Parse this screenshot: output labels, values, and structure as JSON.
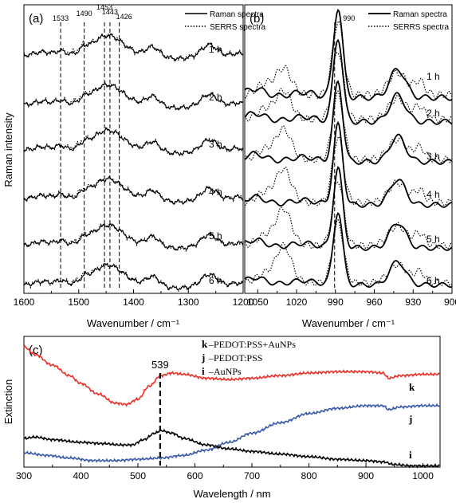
{
  "chart_data": [
    {
      "panel": "(a)",
      "type": "line",
      "xlabel": "Wavenumber / cm⁻¹",
      "ylabel": "Raman intensity",
      "xlim": [
        1600,
        1200
      ],
      "xticks": [
        "1600",
        "1500",
        "1400",
        "1300",
        "1200"
      ],
      "legend": [
        {
          "name": "Raman spectra",
          "style": "solid"
        },
        {
          "name": "SERRS spectra",
          "style": "dotted"
        }
      ],
      "legend_position": "top-right",
      "marker_lines": [
        "1533",
        "1490",
        "1453",
        "1443",
        "1426"
      ],
      "marker_values": [
        1533,
        1490,
        1453,
        1443,
        1426
      ],
      "series_labels": [
        "1 h",
        "2 h",
        "3 h",
        "4 h",
        "5 h",
        "6 h"
      ]
    },
    {
      "panel": "(b)",
      "type": "line",
      "xlabel": "Wavenumber / cm⁻¹",
      "xlim": [
        1060,
        900
      ],
      "xticks": [
        "1050",
        "1020",
        "990",
        "960",
        "930",
        "900"
      ],
      "legend": [
        {
          "name": "Raman spectra",
          "style": "solid"
        },
        {
          "name": "SERRS spectra",
          "style": "dotted"
        }
      ],
      "legend_position": "top-right",
      "marker_lines": [
        "990"
      ],
      "marker_values": [
        990
      ],
      "series_labels": [
        "1 h",
        "2 h",
        "3 h",
        "4 h",
        "5 h",
        "6 h"
      ]
    },
    {
      "panel": "(c)",
      "type": "line",
      "xlabel": "Wavelength / nm",
      "ylabel": "Extinction",
      "xlim": [
        300,
        1030
      ],
      "xticks": [
        "300",
        "400",
        "500",
        "600",
        "700",
        "800",
        "900",
        "1000"
      ],
      "annotation": "539",
      "annotation_x": 539,
      "legend": [
        {
          "key": "k",
          "text": "–PEDOT:PSS+AuNPs"
        },
        {
          "key": "j",
          "text": "–PEDOT:PSS"
        },
        {
          "key": "i",
          "text": "–AuNPs"
        }
      ],
      "curve_labels": [
        "k",
        "j",
        "i"
      ],
      "series": [
        {
          "key": "k",
          "color": "#e8322a",
          "x": [
            300,
            320,
            350,
            380,
            400,
            430,
            460,
            480,
            500,
            520,
            540,
            560,
            580,
            620,
            660,
            700,
            750,
            800,
            850,
            900,
            930,
            940,
            960,
            1000,
            1030
          ],
          "y": [
            0.92,
            0.86,
            0.78,
            0.7,
            0.64,
            0.56,
            0.49,
            0.48,
            0.52,
            0.62,
            0.7,
            0.72,
            0.71,
            0.68,
            0.67,
            0.68,
            0.7,
            0.72,
            0.73,
            0.73,
            0.72,
            0.68,
            0.7,
            0.71,
            0.71
          ]
        },
        {
          "key": "j",
          "color": "#3b5ba8",
          "x": [
            300,
            340,
            380,
            420,
            460,
            500,
            540,
            580,
            620,
            660,
            700,
            750,
            800,
            850,
            900,
            930,
            940,
            960,
            1000,
            1030
          ],
          "y": [
            0.11,
            0.09,
            0.07,
            0.05,
            0.05,
            0.06,
            0.07,
            0.09,
            0.13,
            0.19,
            0.26,
            0.34,
            0.41,
            0.45,
            0.47,
            0.47,
            0.44,
            0.46,
            0.47,
            0.47
          ]
        },
        {
          "key": "i",
          "color": "#000000",
          "x": [
            300,
            320,
            350,
            400,
            440,
            470,
            490,
            510,
            530,
            540,
            560,
            580,
            620,
            660,
            700,
            750,
            800,
            850,
            900,
            930,
            950,
            980,
            1000,
            1030
          ],
          "y": [
            0.22,
            0.23,
            0.21,
            0.19,
            0.18,
            0.17,
            0.17,
            0.21,
            0.26,
            0.28,
            0.26,
            0.22,
            0.17,
            0.14,
            0.12,
            0.1,
            0.08,
            0.06,
            0.05,
            0.04,
            0.02,
            0.01,
            0.01,
            0.01
          ]
        }
      ]
    }
  ]
}
